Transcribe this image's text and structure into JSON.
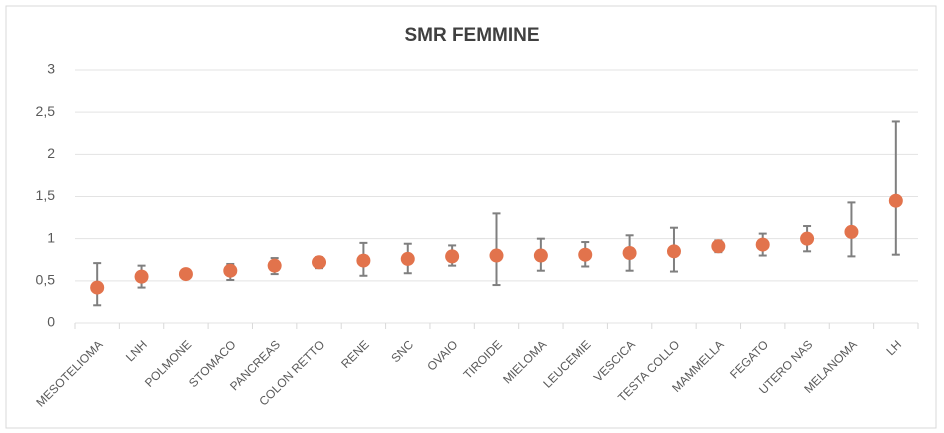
{
  "chart_data": {
    "type": "scatter",
    "title": "SMR FEMMINE",
    "categories": [
      "MESOTELIOMA",
      "LNH",
      "POLMONE",
      "STOMACO",
      "PANCREAS",
      "COLON RETTO",
      "RENE",
      "SNC",
      "OVAIO",
      "TIROIDE",
      "MIELOMA",
      "LEUCEMIE",
      "VESCICA",
      "TESTA COLLO",
      "MAMMELLA",
      "FEGATO",
      "UTERO NAS",
      "MELANOMA",
      "LH"
    ],
    "series": [
      {
        "color": "#e2734c",
        "error_color": "#7f7f7f",
        "values": [
          0.42,
          0.55,
          0.58,
          0.62,
          0.68,
          0.72,
          0.74,
          0.76,
          0.79,
          0.8,
          0.8,
          0.81,
          0.83,
          0.85,
          0.91,
          0.93,
          1.0,
          1.08,
          1.45
        ],
        "lower": [
          0.21,
          0.42,
          0.55,
          0.51,
          0.58,
          0.65,
          0.56,
          0.59,
          0.68,
          0.45,
          0.62,
          0.67,
          0.62,
          0.61,
          0.84,
          0.8,
          0.85,
          0.79,
          0.81
        ],
        "upper": [
          0.71,
          0.68,
          0.62,
          0.7,
          0.77,
          0.78,
          0.95,
          0.94,
          0.92,
          1.3,
          1.0,
          0.96,
          1.04,
          1.13,
          0.98,
          1.06,
          1.15,
          1.43,
          2.39
        ]
      }
    ],
    "ylim": [
      0,
      3
    ],
    "yticks": [
      0,
      {
        "value": 0.5,
        "label": "0,5"
      },
      1,
      {
        "value": 1.5,
        "label": "1,5"
      },
      2,
      {
        "value": 2.5,
        "label": "2,5"
      },
      3
    ],
    "grid": true
  }
}
